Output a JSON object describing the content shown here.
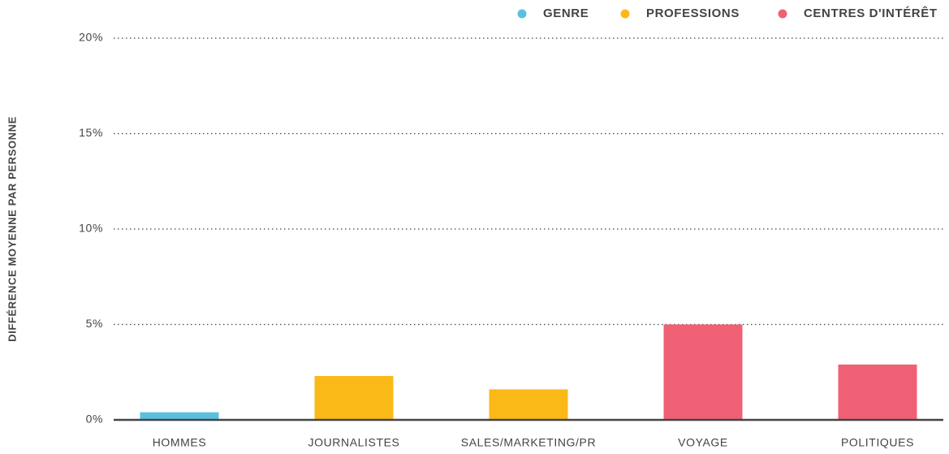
{
  "chart_data": {
    "type": "bar",
    "y_label": "DIFFÉRENCE MOYENNE PAR PERSONNE",
    "categories": [
      "HOMMES",
      "JOURNALISTES",
      "SALES/MARKETING/PR",
      "VOYAGE",
      "POLITIQUES"
    ],
    "series": [
      {
        "name": "GENRE",
        "color": "#5bbfdf",
        "values": [
          0.4,
          null,
          null,
          null,
          null
        ]
      },
      {
        "name": "PROFESSIONS",
        "color": "#fbb917",
        "values": [
          null,
          2.3,
          1.6,
          null,
          null
        ]
      },
      {
        "name": "CENTRES D'INTÉRÊT",
        "color": "#f06075",
        "values": [
          null,
          null,
          null,
          5.0,
          2.9
        ]
      }
    ],
    "ylim": [
      0,
      20
    ],
    "yticks": [
      {
        "value": 0,
        "label": "0%"
      },
      {
        "value": 5,
        "label": "5%"
      },
      {
        "value": 10,
        "label": "10%"
      },
      {
        "value": 15,
        "label": "15%"
      },
      {
        "value": 20,
        "label": "20%"
      }
    ],
    "grid": true,
    "legend": "top-right"
  }
}
